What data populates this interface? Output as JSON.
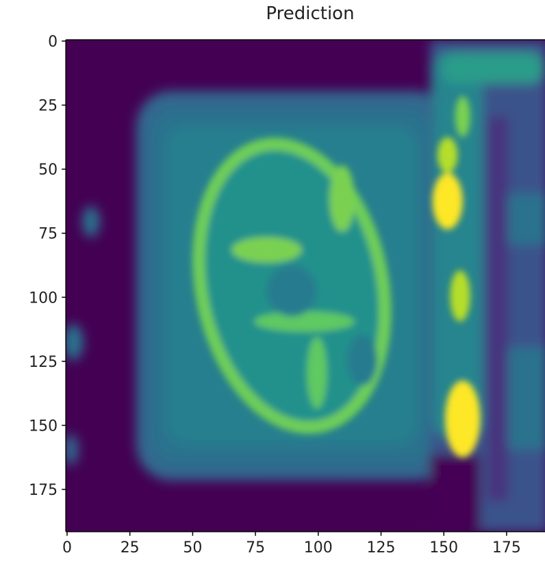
{
  "chart_data": {
    "type": "image",
    "title": "Prediction",
    "xlim": [
      -0.5,
      191.5
    ],
    "ylim": [
      191.5,
      -0.5
    ],
    "xticks": [
      0,
      25,
      50,
      75,
      100,
      125,
      150,
      175
    ],
    "yticks": [
      0,
      25,
      50,
      75,
      100,
      125,
      150,
      175
    ]
  }
}
